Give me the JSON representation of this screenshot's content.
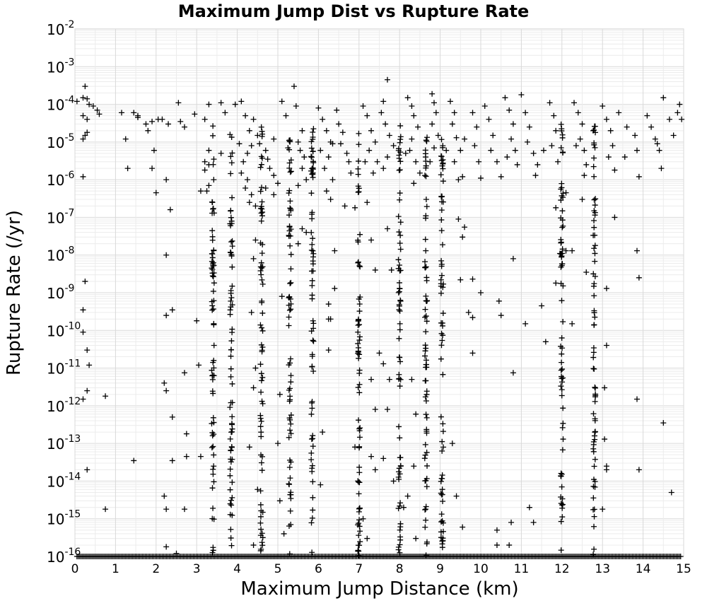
{
  "chart_data": {
    "type": "scatter",
    "title": "Maximum Jump Dist vs Rupture Rate",
    "xlabel": "Maximum Jump Distance (km)",
    "ylabel": "Rupture Rate (/yr)",
    "xlim": [
      0,
      15
    ],
    "ylim": [
      1e-16,
      0.01
    ],
    "y_scale": "log",
    "grid": true,
    "legend": "none",
    "marker": "plus",
    "marker_color": "#000000",
    "x_ticks": [
      "0",
      "1",
      "2",
      "3",
      "4",
      "5",
      "6",
      "7",
      "8",
      "9",
      "10",
      "11",
      "12",
      "13",
      "14",
      "15"
    ],
    "y_ticks": [
      {
        "base": "10",
        "exp": "-2"
      },
      {
        "base": "10",
        "exp": "-3"
      },
      {
        "base": "10",
        "exp": "-4"
      },
      {
        "base": "10",
        "exp": "-5"
      },
      {
        "base": "10",
        "exp": "-6"
      },
      {
        "base": "10",
        "exp": "-7"
      },
      {
        "base": "10",
        "exp": "-8"
      },
      {
        "base": "10",
        "exp": "-9"
      },
      {
        "base": "10",
        "exp": "-10"
      },
      {
        "base": "10",
        "exp": "-11"
      },
      {
        "base": "10",
        "exp": "-12"
      },
      {
        "base": "10",
        "exp": "-13"
      },
      {
        "base": "10",
        "exp": "-14"
      },
      {
        "base": "10",
        "exp": "-15"
      },
      {
        "base": "10",
        "exp": "-16"
      }
    ],
    "column_x": [
      3.4,
      3.85,
      4.6,
      5.3,
      5.85,
      7.0,
      8.0,
      8.65,
      9.05,
      12.0,
      12.8
    ],
    "points": [
      [
        0.05,
        0.00012
      ],
      [
        0.2,
        0.00015
      ],
      [
        0.25,
        0.0003
      ],
      [
        0.3,
        0.00014
      ],
      [
        0.35,
        0.0001
      ],
      [
        0.45,
        9e-05
      ],
      [
        0.55,
        7e-05
      ],
      [
        0.2,
        5e-05
      ],
      [
        0.3,
        4e-05
      ],
      [
        0.25,
        1.5e-05
      ],
      [
        0.2,
        1.2e-05
      ],
      [
        0.3,
        1.8e-05
      ],
      [
        0.2,
        1.2e-06
      ],
      [
        0.25,
        2e-09
      ],
      [
        0.2,
        3.5e-10
      ],
      [
        0.2,
        9e-11
      ],
      [
        0.3,
        3e-11
      ],
      [
        0.35,
        1.2e-11
      ],
      [
        0.3,
        2.5e-12
      ],
      [
        0.2,
        1.5e-12
      ],
      [
        0.3,
        2e-14
      ],
      [
        0.75,
        1.8e-12
      ],
      [
        0.75,
        1.8e-15
      ],
      [
        1.15,
        6e-05
      ],
      [
        1.25,
        1.2e-05
      ],
      [
        1.3,
        2e-06
      ],
      [
        1.45,
        6e-05
      ],
      [
        1.45,
        3.5e-14
      ],
      [
        1.55,
        4.5e-05
      ],
      [
        1.75,
        3e-05
      ],
      [
        1.9,
        2e-06
      ],
      [
        1.95,
        6e-06
      ],
      [
        2.0,
        4.5e-07
      ],
      [
        2.05,
        4e-05
      ],
      [
        1.9,
        3.5e-05
      ],
      [
        2.15,
        4e-05
      ],
      [
        2.25,
        1e-06
      ],
      [
        2.3,
        3e-05
      ],
      [
        2.35,
        1.6e-07
      ],
      [
        2.25,
        1e-08
      ],
      [
        2.25,
        2.5e-10
      ],
      [
        2.4,
        3.5e-10
      ],
      [
        2.2,
        4e-12
      ],
      [
        2.25,
        2.5e-12
      ],
      [
        2.4,
        5e-13
      ],
      [
        2.4,
        3.5e-14
      ],
      [
        2.2,
        4e-15
      ],
      [
        2.25,
        1.8e-15
      ],
      [
        2.25,
        1.8e-16
      ],
      [
        2.5,
        1.2e-16
      ],
      [
        2.55,
        0.00011
      ],
      [
        2.6,
        3.5e-05
      ],
      [
        2.7,
        7.5e-12
      ],
      [
        2.75,
        1.8e-13
      ],
      [
        2.75,
        4.5e-14
      ],
      [
        2.7,
        1.8e-15
      ],
      [
        2.95,
        5.5e-05
      ],
      [
        3.0,
        1.8e-10
      ],
      [
        3.05,
        1.2e-11
      ],
      [
        3.1,
        4.5e-14
      ],
      [
        3.1,
        5e-07
      ],
      [
        3.3,
        0.0001
      ],
      [
        3.3,
        6e-06
      ],
      [
        3.2,
        4e-05
      ],
      [
        3.2,
        3e-06
      ],
      [
        3.3,
        2.5e-06
      ],
      [
        3.2,
        1.8e-06
      ],
      [
        3.3,
        7e-07
      ],
      [
        3.25,
        5e-07
      ],
      [
        3.6,
        0.00011
      ],
      [
        3.7,
        6e-05
      ],
      [
        3.95,
        0.0001
      ],
      [
        4.1,
        0.00012
      ],
      [
        4.2,
        5e-05
      ],
      [
        4.3,
        2e-05
      ],
      [
        4.4,
        4e-05
      ],
      [
        4.35,
        8e-06
      ],
      [
        4.25,
        5e-06
      ],
      [
        4.15,
        3e-06
      ],
      [
        4.1,
        1.5e-06
      ],
      [
        4.25,
        1e-06
      ],
      [
        4.2,
        6e-07
      ],
      [
        4.35,
        4e-07
      ],
      [
        4.45,
        2e-07
      ],
      [
        4.3,
        2.5e-07
      ],
      [
        4.5,
        1.5e-05
      ],
      [
        4.55,
        9e-06
      ],
      [
        4.7,
        6e-06
      ],
      [
        4.75,
        3.5e-06
      ],
      [
        4.8,
        2e-06
      ],
      [
        4.9,
        1.3e-06
      ],
      [
        5.0,
        8e-07
      ],
      [
        4.7,
        6e-07
      ],
      [
        4.9,
        4e-07
      ],
      [
        5.1,
        0.00012
      ],
      [
        5.2,
        5e-05
      ],
      [
        5.4,
        0.0003
      ],
      [
        5.45,
        9e-05
      ],
      [
        5.6,
        2e-05
      ],
      [
        5.5,
        1e-05
      ],
      [
        5.55,
        6e-06
      ],
      [
        5.65,
        4e-06
      ],
      [
        5.6,
        2e-06
      ],
      [
        5.7,
        1e-06
      ],
      [
        5.5,
        7e-07
      ],
      [
        5.6,
        5e-08
      ],
      [
        5.5,
        2e-08
      ],
      [
        5.7,
        4e-08
      ],
      [
        6.0,
        8e-05
      ],
      [
        6.1,
        4e-05
      ],
      [
        6.2,
        2e-05
      ],
      [
        6.3,
        1e-05
      ],
      [
        6.05,
        6e-06
      ],
      [
        6.25,
        4e-06
      ],
      [
        6.15,
        2e-06
      ],
      [
        6.35,
        1e-06
      ],
      [
        6.2,
        5e-07
      ],
      [
        6.3,
        3e-07
      ],
      [
        6.45,
        7e-05
      ],
      [
        6.5,
        3e-05
      ],
      [
        6.6,
        1.8e-05
      ],
      [
        6.55,
        9e-06
      ],
      [
        6.7,
        5e-06
      ],
      [
        6.75,
        3e-06
      ],
      [
        6.8,
        1.5e-06
      ],
      [
        6.65,
        2e-07
      ],
      [
        6.9,
        1.8e-07
      ],
      [
        6.4,
        1.3e-08
      ],
      [
        6.4,
        1.3e-09
      ],
      [
        6.25,
        5e-10
      ],
      [
        6.25,
        2e-10
      ],
      [
        6.25,
        3e-11
      ],
      [
        6.3,
        2e-10
      ],
      [
        7.1,
        9e-05
      ],
      [
        7.2,
        5e-05
      ],
      [
        7.3,
        2e-05
      ],
      [
        7.4,
        1e-05
      ],
      [
        7.25,
        6e-06
      ],
      [
        7.45,
        3e-06
      ],
      [
        7.35,
        1.5e-06
      ],
      [
        7.2,
        2.5e-07
      ],
      [
        7.3,
        2.5e-08
      ],
      [
        7.4,
        4e-09
      ],
      [
        7.3,
        5e-12
      ],
      [
        7.4,
        8e-13
      ],
      [
        7.3,
        4.5e-14
      ],
      [
        7.4,
        2e-14
      ],
      [
        7.5,
        2.5e-11
      ],
      [
        7.6,
        0.00012
      ],
      [
        7.7,
        0.00045
      ],
      [
        7.55,
        6e-05
      ],
      [
        7.65,
        3e-05
      ],
      [
        7.75,
        1.5e-05
      ],
      [
        7.85,
        8e-06
      ],
      [
        7.7,
        4e-06
      ],
      [
        7.6,
        2e-06
      ],
      [
        7.7,
        5e-08
      ],
      [
        7.8,
        4e-09
      ],
      [
        7.6,
        1.3e-11
      ],
      [
        7.75,
        5e-12
      ],
      [
        7.7,
        8e-13
      ],
      [
        7.6,
        4e-14
      ],
      [
        8.2,
        0.00015
      ],
      [
        8.3,
        9e-05
      ],
      [
        8.35,
        5e-05
      ],
      [
        8.45,
        2.5e-05
      ],
      [
        8.3,
        1.2e-05
      ],
      [
        8.25,
        6e-06
      ],
      [
        8.4,
        3e-06
      ],
      [
        8.5,
        1.5e-06
      ],
      [
        8.35,
        8e-07
      ],
      [
        8.3,
        5e-12
      ],
      [
        8.4,
        6e-13
      ],
      [
        8.35,
        2.5e-14
      ],
      [
        8.4,
        3e-16
      ],
      [
        8.8,
        0.00019
      ],
      [
        8.85,
        0.00011
      ],
      [
        8.9,
        6e-05
      ],
      [
        8.8,
        3e-05
      ],
      [
        8.95,
        1.5e-05
      ],
      [
        8.85,
        7e-06
      ],
      [
        8.75,
        3e-06
      ],
      [
        9.25,
        0.00012
      ],
      [
        9.35,
        6e-05
      ],
      [
        9.3,
        3e-05
      ],
      [
        9.4,
        1.3e-05
      ],
      [
        9.5,
        6e-06
      ],
      [
        9.35,
        3e-06
      ],
      [
        9.45,
        1e-06
      ],
      [
        9.55,
        1.2e-06
      ],
      [
        9.45,
        9e-08
      ],
      [
        9.55,
        3e-08
      ],
      [
        9.6,
        5.5e-08
      ],
      [
        9.5,
        2.2e-09
      ],
      [
        9.7,
        3e-10
      ],
      [
        9.55,
        6e-16
      ],
      [
        9.6,
        1.2e-05
      ],
      [
        9.8,
        6e-05
      ],
      [
        9.9,
        2.5e-05
      ],
      [
        9.85,
        8e-06
      ],
      [
        9.95,
        3e-06
      ],
      [
        10.0,
        1.1e-06
      ],
      [
        9.8,
        2.3e-09
      ],
      [
        10.0,
        1e-09
      ],
      [
        9.8,
        2.2e-10
      ],
      [
        9.8,
        2.5e-11
      ],
      [
        10.1,
        9e-05
      ],
      [
        10.2,
        4e-05
      ],
      [
        10.3,
        1.5e-05
      ],
      [
        10.25,
        6e-06
      ],
      [
        10.4,
        3e-06
      ],
      [
        10.5,
        1.2e-06
      ],
      [
        10.45,
        6e-10
      ],
      [
        10.5,
        2.5e-10
      ],
      [
        10.4,
        5e-16
      ],
      [
        10.4,
        2e-16
      ],
      [
        10.6,
        0.00015
      ],
      [
        10.7,
        7e-05
      ],
      [
        10.8,
        3e-05
      ],
      [
        10.75,
        1.2e-05
      ],
      [
        10.85,
        6e-06
      ],
      [
        10.9,
        2.5e-06
      ],
      [
        10.8,
        8e-09
      ],
      [
        10.8,
        7.5e-12
      ],
      [
        10.75,
        8e-16
      ],
      [
        10.7,
        2e-16
      ],
      [
        11.0,
        0.00018
      ],
      [
        11.1,
        6e-05
      ],
      [
        11.2,
        2.5e-05
      ],
      [
        11.15,
        1e-05
      ],
      [
        11.3,
        5e-06
      ],
      [
        11.4,
        2.5e-06
      ],
      [
        11.35,
        1.3e-06
      ],
      [
        11.1,
        1.5e-10
      ],
      [
        11.2,
        2e-15
      ],
      [
        11.3,
        8e-16
      ],
      [
        11.5,
        4.5e-10
      ],
      [
        11.6,
        5e-11
      ],
      [
        11.7,
        0.00011
      ],
      [
        11.8,
        5e-05
      ],
      [
        11.85,
        2e-05
      ],
      [
        11.75,
        8e-06
      ],
      [
        11.9,
        3e-06
      ],
      [
        11.85,
        1.8e-07
      ],
      [
        11.95,
        1.1e-08
      ],
      [
        11.85,
        1.8e-09
      ],
      [
        12.1,
        4.5e-07
      ],
      [
        12.1,
        1.3e-08
      ],
      [
        12.25,
        1.5e-10
      ],
      [
        12.25,
        1.3e-08
      ],
      [
        12.3,
        0.00011
      ],
      [
        12.4,
        6e-05
      ],
      [
        12.5,
        3e-05
      ],
      [
        12.45,
        1.2e-05
      ],
      [
        12.55,
        6e-06
      ],
      [
        12.6,
        2.5e-06
      ],
      [
        12.5,
        3e-07
      ],
      [
        12.55,
        1.3e-06
      ],
      [
        12.6,
        3.5e-09
      ],
      [
        13.0,
        9e-05
      ],
      [
        13.1,
        4e-05
      ],
      [
        13.2,
        2e-05
      ],
      [
        13.25,
        8e-06
      ],
      [
        13.15,
        4e-06
      ],
      [
        13.3,
        1.8e-06
      ],
      [
        13.3,
        1e-07
      ],
      [
        13.1,
        1.3e-09
      ],
      [
        13.1,
        4e-11
      ],
      [
        13.05,
        3e-12
      ],
      [
        13.05,
        1.3e-13
      ],
      [
        13.1,
        2.5e-14
      ],
      [
        13.0,
        1.8e-15
      ],
      [
        13.1,
        2e-14
      ],
      [
        13.4,
        6e-05
      ],
      [
        13.6,
        2.5e-05
      ],
      [
        13.8,
        1.5e-05
      ],
      [
        13.85,
        6e-06
      ],
      [
        13.9,
        1.2e-06
      ],
      [
        13.85,
        1.3e-08
      ],
      [
        13.9,
        2.5e-09
      ],
      [
        13.85,
        1.5e-12
      ],
      [
        13.9,
        2e-14
      ],
      [
        14.1,
        5e-05
      ],
      [
        14.2,
        2.5e-05
      ],
      [
        14.3,
        1.2e-05
      ],
      [
        14.4,
        6e-06
      ],
      [
        14.45,
        2e-06
      ],
      [
        14.5,
        0.00015
      ],
      [
        14.65,
        4e-05
      ],
      [
        14.75,
        1.5e-05
      ],
      [
        14.85,
        6e-05
      ],
      [
        14.9,
        0.0001
      ],
      [
        14.5,
        3.5e-13
      ],
      [
        14.7,
        5e-15
      ],
      [
        1.55,
        5e-05
      ],
      [
        0.6,
        5.5e-05
      ],
      [
        1.8,
        2e-05
      ],
      [
        2.7,
        2.5e-05
      ],
      [
        3.6,
        5e-06
      ],
      [
        4.05,
        9e-06
      ],
      [
        4.9,
        1.2e-05
      ],
      [
        5.25,
        7e-06
      ],
      [
        6.35,
        9e-06
      ],
      [
        7.15,
        3e-06
      ],
      [
        8.15,
        5e-06
      ],
      [
        9.15,
        6e-06
      ],
      [
        10.65,
        4e-06
      ],
      [
        11.55,
        6e-06
      ],
      [
        12.35,
        8e-06
      ],
      [
        13.55,
        4e-06
      ],
      [
        14.35,
        9e-06
      ],
      [
        14.95,
        4e-05
      ],
      [
        4.45,
        2.5e-08
      ],
      [
        4.4,
        8e-09
      ],
      [
        4.35,
        3e-10
      ],
      [
        4.45,
        1e-11
      ],
      [
        4.4,
        3e-12
      ],
      [
        4.3,
        8e-14
      ],
      [
        4.5,
        6e-15
      ],
      [
        4.4,
        2e-16
      ],
      [
        5.05,
        3e-15
      ],
      [
        5.1,
        8e-10
      ],
      [
        5.05,
        2e-12
      ],
      [
        5.0,
        1e-13
      ],
      [
        5.15,
        4e-16
      ],
      [
        6.1,
        2e-13
      ],
      [
        6.05,
        8e-15
      ],
      [
        6.9,
        8e-14
      ],
      [
        7.1,
        1e-15
      ],
      [
        7.2,
        3e-16
      ],
      [
        7.85,
        1e-14
      ],
      [
        8.2,
        4e-15
      ],
      [
        8.1,
        2e-15
      ],
      [
        9.3,
        1e-13
      ],
      [
        9.4,
        4e-15
      ]
    ]
  }
}
